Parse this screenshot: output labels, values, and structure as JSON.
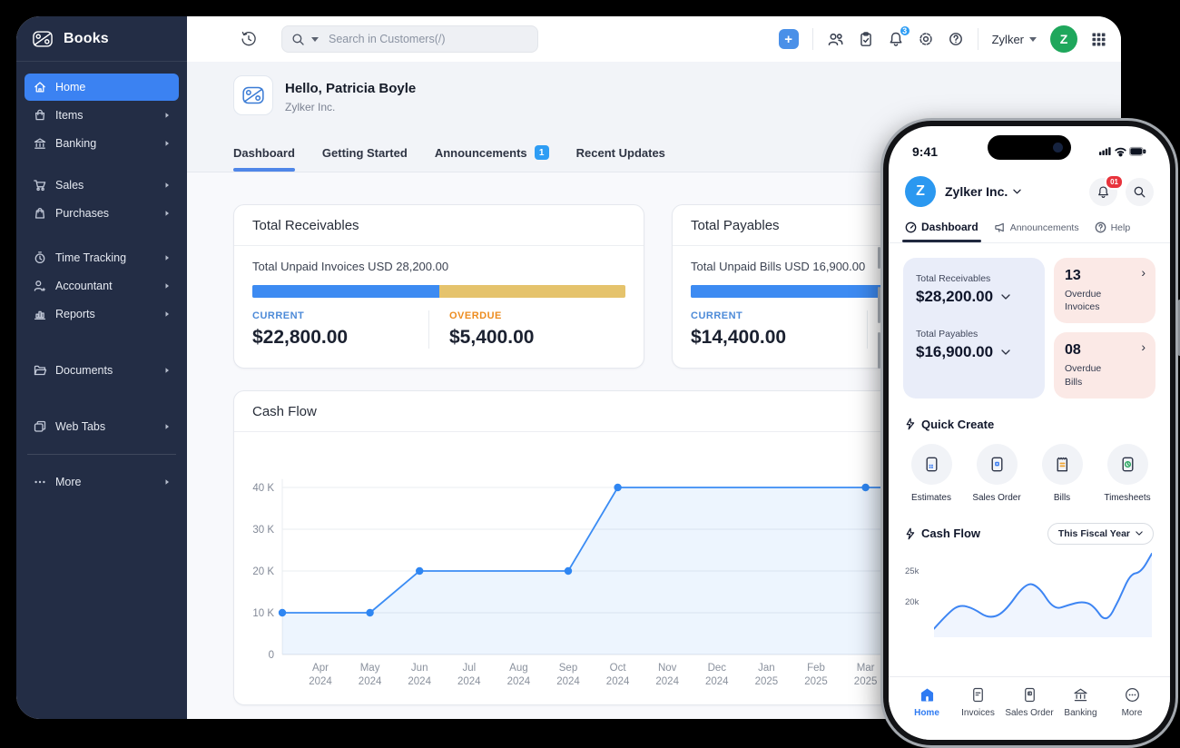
{
  "glyphs": {
    "plus": "+",
    "chevron_right": "›"
  },
  "colors": {
    "accent_blue": "#3b82f2",
    "sidebar_bg": "#232d45",
    "bar_yellow": "#e5c36c",
    "overdue_orange": "#ed8c1f",
    "current_blue": "#4c8ad8",
    "avatar_green": "#1fa75c",
    "badge_red": "#e8333c",
    "notification_blue": "#2e9df4",
    "phone_card_lavender": "#e9edf9",
    "phone_card_pink": "#fbe9e6"
  },
  "sidebar": {
    "logo": "Books",
    "items": [
      {
        "label": "Home",
        "icon": "home-icon",
        "active": true
      },
      {
        "label": "Items",
        "icon": "items-icon"
      },
      {
        "label": "Banking",
        "icon": "banking-icon"
      },
      {
        "label": "Sales",
        "icon": "sales-icon"
      },
      {
        "label": "Purchases",
        "icon": "purchases-icon"
      },
      {
        "label": "Time Tracking",
        "icon": "time-tracking-icon"
      },
      {
        "label": "Accountant",
        "icon": "accountant-icon"
      },
      {
        "label": "Reports",
        "icon": "reports-icon"
      },
      {
        "label": "Documents",
        "icon": "documents-icon"
      },
      {
        "label": "Web Tabs",
        "icon": "web-tabs-icon"
      },
      {
        "label": "More",
        "icon": "more-icon"
      }
    ]
  },
  "topbar": {
    "search_placeholder": "Search in Customers(/)",
    "notification_count": "3",
    "org_name": "Zylker",
    "avatar_initial": "Z"
  },
  "header": {
    "greeting": "Hello, Patricia Boyle",
    "company": "Zylker Inc.",
    "tabs": [
      {
        "label": "Dashboard",
        "active": true
      },
      {
        "label": "Getting Started"
      },
      {
        "label": "Announcements",
        "badge": "1"
      },
      {
        "label": "Recent Updates"
      }
    ]
  },
  "receivables": {
    "title": "Total Receivables",
    "subtitle": "Total Unpaid Invoices USD 28,200.00",
    "current_label": "CURRENT",
    "current_value": "$22,800.00",
    "overdue_label": "OVERDUE",
    "overdue_value": "$5,400.00",
    "bar_blue_pct": 50
  },
  "payables": {
    "title": "Total Payables",
    "subtitle": "Total Unpaid Bills USD 16,900.00",
    "current_label": "CURRENT",
    "current_value": "$14,400.00",
    "bar_blue_pct": 85
  },
  "cashflow": {
    "title": "Cash Flow",
    "chart_data": {
      "type": "line",
      "x": [
        "Apr 2024",
        "May 2024",
        "Jun 2024",
        "Jul 2024",
        "Aug 2024",
        "Sep 2024",
        "Oct 2024",
        "Nov 2024",
        "Dec 2024",
        "Jan 2025",
        "Feb 2025",
        "Mar 2025"
      ],
      "values": [
        10000,
        10000,
        20000,
        20000,
        20000,
        20000,
        40000,
        40000,
        40000,
        40000,
        40000,
        40000
      ],
      "yticks": [
        {
          "v": 0,
          "label": "0"
        },
        {
          "v": 10000,
          "label": "10 K"
        },
        {
          "v": 20000,
          "label": "20 K"
        },
        {
          "v": 30000,
          "label": "30 K"
        },
        {
          "v": 40000,
          "label": "40 K"
        }
      ],
      "ylim": [
        0,
        45000
      ],
      "marker_indices": [
        0,
        1,
        2,
        5,
        6,
        11
      ],
      "line_color": "#3b8cf4",
      "grid": true,
      "legend": false
    }
  },
  "phone": {
    "status_time": "9:41",
    "org_name": "Zylker Inc.",
    "avatar_initial": "Z",
    "notification_badge": "01",
    "tabs": [
      {
        "label": "Dashboard",
        "active": true
      },
      {
        "label": "Announcements"
      },
      {
        "label": "Help"
      }
    ],
    "summary": {
      "receivables_label": "Total Receivables",
      "receivables_value": "$28,200.00",
      "payables_label": "Total Payables",
      "payables_value": "$16,900.00",
      "overdue_invoices": {
        "count": "13",
        "label": "Overdue Invoices"
      },
      "overdue_bills": {
        "count": "08",
        "label": "Overdue Bills"
      }
    },
    "quick_create": {
      "title": "Quick Create",
      "items": [
        {
          "label": "Estimates",
          "icon": "estimates-doc-icon"
        },
        {
          "label": "Sales Order",
          "icon": "sales-order-doc-icon"
        },
        {
          "label": "Bills",
          "icon": "bills-doc-icon"
        },
        {
          "label": "Timesheets",
          "icon": "timesheets-doc-icon"
        }
      ]
    },
    "cashflow": {
      "title": "Cash Flow",
      "filter": "This Fiscal Year",
      "chart_data": {
        "type": "area",
        "yticks": [
          "25k",
          "20k"
        ],
        "points_pct": [
          [
            0,
            90
          ],
          [
            7,
            70
          ],
          [
            12,
            62
          ],
          [
            18,
            66
          ],
          [
            25,
            78
          ],
          [
            32,
            72
          ],
          [
            42,
            36
          ],
          [
            48,
            40
          ],
          [
            55,
            68
          ],
          [
            62,
            62
          ],
          [
            68,
            58
          ],
          [
            73,
            62
          ],
          [
            79,
            84
          ],
          [
            85,
            56
          ],
          [
            90,
            26
          ],
          [
            95,
            24
          ],
          [
            100,
            2
          ]
        ],
        "line_color": "#3d85f3"
      }
    },
    "bottom_nav": [
      {
        "label": "Home",
        "icon": "home-icon",
        "active": true
      },
      {
        "label": "Invoices",
        "icon": "invoices-icon"
      },
      {
        "label": "Sales Order",
        "icon": "sales-order-icon"
      },
      {
        "label": "Banking",
        "icon": "banking-icon"
      },
      {
        "label": "More",
        "icon": "more-icon"
      }
    ]
  }
}
